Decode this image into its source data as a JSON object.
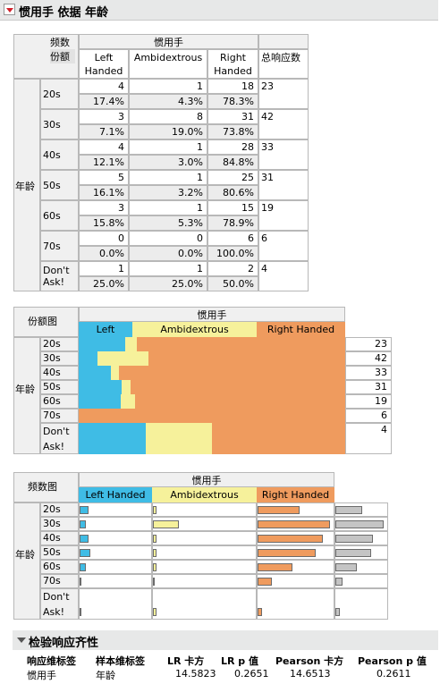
{
  "title": "惯用手 依据 年龄",
  "corner": {
    "top": "频数",
    "bottom": "份额"
  },
  "col_group": "惯用手",
  "cols": [
    "Left\nHanded",
    "Ambidextrous",
    "Right\nHanded"
  ],
  "total_header": "总响应数",
  "row_group": "年龄",
  "rows": [
    {
      "label": "20s",
      "counts": [
        "4",
        "1",
        "18"
      ],
      "pcts": [
        "17.4%",
        "4.3%",
        "78.3%"
      ],
      "total": "23"
    },
    {
      "label": "30s",
      "counts": [
        "3",
        "8",
        "31"
      ],
      "pcts": [
        "7.1%",
        "19.0%",
        "73.8%"
      ],
      "total": "42"
    },
    {
      "label": "40s",
      "counts": [
        "4",
        "1",
        "28"
      ],
      "pcts": [
        "12.1%",
        "3.0%",
        "84.8%"
      ],
      "total": "33"
    },
    {
      "label": "50s",
      "counts": [
        "5",
        "1",
        "25"
      ],
      "pcts": [
        "16.1%",
        "3.2%",
        "80.6%"
      ],
      "total": "31"
    },
    {
      "label": "60s",
      "counts": [
        "3",
        "1",
        "15"
      ],
      "pcts": [
        "15.8%",
        "5.3%",
        "78.9%"
      ],
      "total": "19"
    },
    {
      "label": "70s",
      "counts": [
        "0",
        "0",
        "6"
      ],
      "pcts": [
        "0.0%",
        "0.0%",
        "100.0%"
      ],
      "total": "6"
    },
    {
      "label": "Don't\nAsk!",
      "counts": [
        "1",
        "1",
        "2"
      ],
      "pcts": [
        "25.0%",
        "25.0%",
        "50.0%"
      ],
      "total": "4"
    }
  ],
  "share_chart": {
    "label": "份额图",
    "legend": [
      "Left Handed",
      "Ambidextrous",
      "Right Handed"
    ]
  },
  "freq_chart": {
    "label": "频数图",
    "legend": [
      "Left Handed",
      "Ambidextrous",
      "Right Handed"
    ]
  },
  "test": {
    "title": "检验响应齐性",
    "headers": [
      "响应维标签",
      "样本维标签",
      "LR 卡方",
      "LR p 值",
      "Pearson 卡方",
      "Pearson p 值"
    ],
    "values": [
      "惯用手",
      "年龄",
      "14.5823",
      "0.2651",
      "14.6513",
      "0.2611"
    ]
  },
  "colors": {
    "left": "#3fbce5",
    "ambi": "#f6f19b",
    "right": "#ef9b5e"
  }
}
